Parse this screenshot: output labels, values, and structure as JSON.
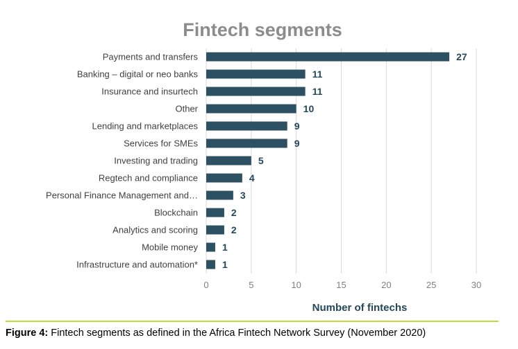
{
  "chart_data": {
    "type": "bar",
    "orientation": "horizontal",
    "title": "Fintech segments",
    "xlabel": "Number of fintechs",
    "ylabel": "",
    "xlim": [
      0,
      30
    ],
    "xticks": [
      0,
      5,
      10,
      15,
      20,
      25,
      30
    ],
    "grid": "vertical",
    "categories": [
      "Payments and transfers",
      "Banking – digital or neo banks",
      "Insurance and insurtech",
      "Other",
      "Lending and marketplaces",
      "Services for SMEs",
      "Investing and trading",
      "Regtech and compliance",
      "Personal Finance Management and…",
      "Blockchain",
      "Analytics and scoring",
      "Mobile money",
      "Infrastructure and automation*"
    ],
    "values": [
      27,
      11,
      11,
      10,
      9,
      9,
      5,
      4,
      3,
      2,
      2,
      1,
      1
    ],
    "colors": {
      "bar": "#2d5063",
      "value_label": "#24475a",
      "title": "#8c8c8c",
      "accent_rule": "#c5d83a"
    }
  },
  "caption": {
    "label": "Figure 4:",
    "text": " Fintech segments as defined in the Africa Fintech Network Survey (November 2020)"
  }
}
